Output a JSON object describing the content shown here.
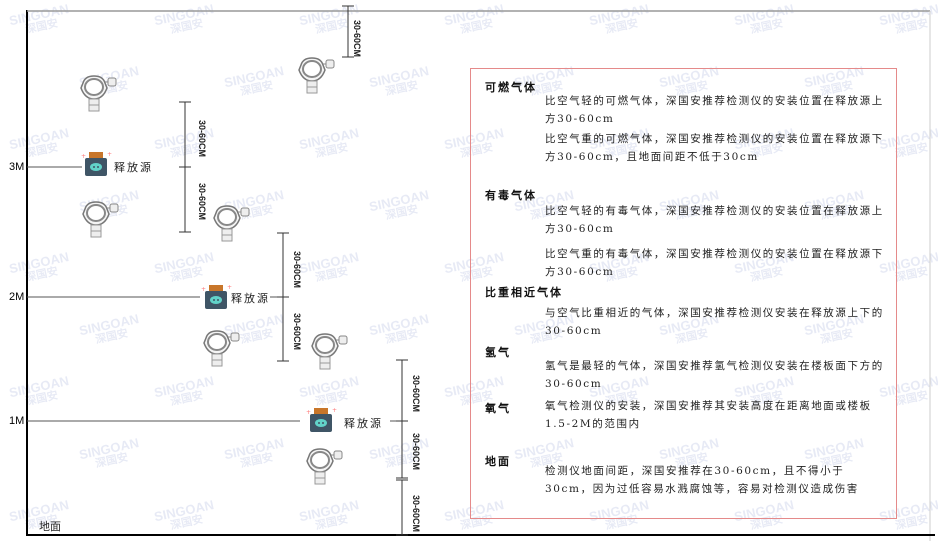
{
  "watermark": {
    "brand": "SINGOAN",
    "cn": "深国安"
  },
  "levels": [
    {
      "label": "3M"
    },
    {
      "label": "2M"
    },
    {
      "label": "1M"
    }
  ],
  "source_label": "释放源",
  "dimension_label": "30-60CM",
  "floor_label": "地面",
  "panel": {
    "sections": [
      {
        "heading": "可燃气体",
        "paragraphs": [
          "比空气轻的可燃气体，深国安推荐检测仪的安装位置在释放源上方30-60cm",
          "比空气重的可燃气体，深国安推荐检测仪的安装位置在释放源下方30-60cm，且地面间距不低于30cm"
        ]
      },
      {
        "heading": "有毒气体",
        "paragraphs": [
          "比空气轻的有毒气体，深国安推荐检测仪的安装位置在释放源上方30-60cm",
          "比空气重的有毒气体，深国安推荐检测仪的安装位置在释放源下方30-60cm"
        ]
      },
      {
        "heading": "比重相近气体",
        "paragraphs": [
          "与空气比重相近的气体，深国安推荐检测仪安装在释放源上下的30-60cm"
        ]
      },
      {
        "heading": "氢气",
        "paragraphs": [
          "氢气是最轻的气体，深国安推荐氢气检测仪安装在楼板面下方的30-60cm"
        ]
      },
      {
        "heading": "氧气",
        "paragraphs": [
          "氧气检测仪的安装，深国安推荐其安装高度在距离地面或楼板1.5-2M的范围内"
        ]
      },
      {
        "heading": "地面",
        "paragraphs": [
          "检测仪地面间距，深国安推荐在30-60cm，且不得小于30cm，因为过低容易水溅腐蚀等，容易对检测仪造成伤害"
        ]
      }
    ]
  }
}
